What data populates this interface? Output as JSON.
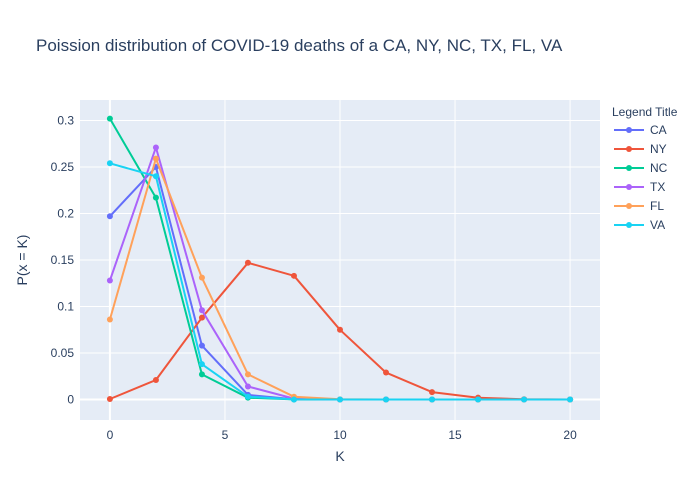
{
  "chart_data": {
    "type": "line",
    "title": "Poission distribution of COVID-19 deaths of a CA, NY, NC, TX, FL, VA",
    "xlabel": "K",
    "ylabel": "P(x = K)",
    "xlim": [
      -1.3,
      21.3
    ],
    "ylim": [
      -0.022,
      0.322
    ],
    "xticks": [
      0,
      5,
      10,
      15,
      20
    ],
    "xtick_labels": [
      "0",
      "5",
      "10",
      "15",
      "20"
    ],
    "yticks": [
      0,
      0.05,
      0.1,
      0.15,
      0.2,
      0.25,
      0.3
    ],
    "ytick_labels": [
      "0",
      "0.05",
      "0.1",
      "0.15",
      "0.2",
      "0.25",
      "0.3"
    ],
    "grid": true,
    "legend": {
      "title": "Legend Title",
      "position": "right"
    },
    "x": [
      0,
      2,
      4,
      6,
      8,
      10,
      12,
      14,
      16,
      18,
      20
    ],
    "series": [
      {
        "name": "CA",
        "color": "#636efa",
        "values": [
          0.197,
          0.25,
          0.058,
          0.005,
          0.0003,
          0,
          0,
          0,
          0,
          0,
          0
        ]
      },
      {
        "name": "NY",
        "color": "#ef553b",
        "values": [
          0.0006,
          0.021,
          0.088,
          0.147,
          0.133,
          0.075,
          0.029,
          0.008,
          0.002,
          0.0003,
          0
        ]
      },
      {
        "name": "NC",
        "color": "#00cc96",
        "values": [
          0.302,
          0.217,
          0.027,
          0.002,
          0.0001,
          0,
          0,
          0,
          0,
          0,
          0
        ]
      },
      {
        "name": "TX",
        "color": "#ab63fa",
        "values": [
          0.128,
          0.271,
          0.096,
          0.014,
          0.001,
          0,
          0,
          0,
          0,
          0,
          0
        ]
      },
      {
        "name": "FL",
        "color": "#ffa15a",
        "values": [
          0.086,
          0.259,
          0.131,
          0.027,
          0.003,
          0.0002,
          0,
          0,
          0,
          0,
          0
        ]
      },
      {
        "name": "VA",
        "color": "#19d3f3",
        "values": [
          0.254,
          0.24,
          0.038,
          0.003,
          0.0001,
          0,
          0,
          0,
          0,
          0,
          0
        ]
      }
    ]
  }
}
